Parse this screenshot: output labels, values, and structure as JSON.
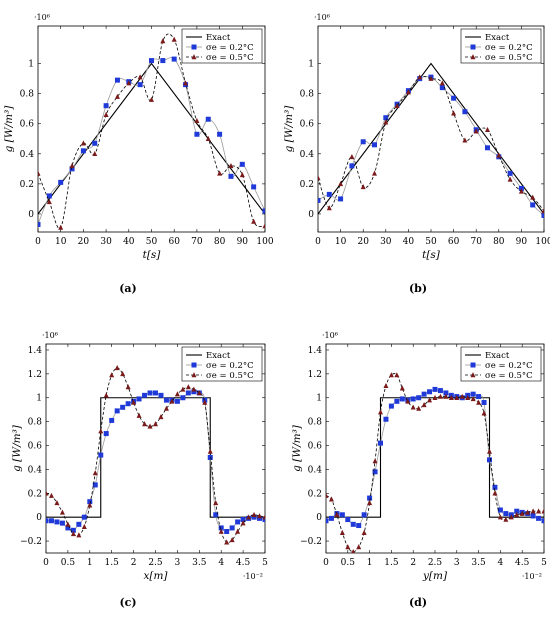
{
  "captions": [
    "(a)",
    "(b)",
    "(c)",
    "(d)"
  ],
  "legend": {
    "exact": "Exact",
    "s02": "σe = 0.2°C",
    "s05": "σe = 0.5°C"
  },
  "colors": {
    "exact": "#000000",
    "s02_marker": "#1f3ad8",
    "s02_line": "#9a9a9a",
    "s05": "#7a1a1a"
  },
  "chart_data": [
    {
      "type": "line",
      "panel": "(a)",
      "xlabel": "t[s]",
      "ylabel": "g [W/m³]",
      "y_multiplier": "·10⁶",
      "x_multiplier": "",
      "xlim": [
        0,
        100
      ],
      "ylim": [
        -0.12,
        1.25
      ],
      "xticks": [
        0,
        10,
        20,
        30,
        40,
        50,
        60,
        70,
        80,
        90,
        100
      ],
      "xtick_labels": [
        "0",
        "10",
        "20",
        "30",
        "40",
        "50",
        "60",
        "70",
        "80",
        "90",
        "100"
      ],
      "yticks": [
        0,
        0.2,
        0.4,
        0.6,
        0.8,
        1
      ],
      "ytick_labels": [
        "0",
        "0.2",
        "0.4",
        "0.6",
        "0.8",
        "1"
      ],
      "legend_position": "top-right",
      "series": [
        {
          "name": "Exact",
          "style": "solid",
          "x": [
            0,
            50,
            100
          ],
          "y": [
            0,
            1,
            0
          ]
        },
        {
          "name": "σe = 0.2°C",
          "style": "square",
          "x": [
            0,
            5,
            10,
            15,
            20,
            25,
            30,
            35,
            40,
            45,
            50,
            55,
            60,
            65,
            70,
            75,
            80,
            85,
            90,
            95,
            100
          ],
          "y": [
            -0.07,
            0.12,
            0.21,
            0.3,
            0.42,
            0.47,
            0.72,
            0.89,
            0.88,
            0.86,
            1.02,
            1.02,
            1.03,
            0.86,
            0.53,
            0.63,
            0.53,
            0.25,
            0.33,
            0.18,
            0.02
          ]
        },
        {
          "name": "σe = 0.5°C",
          "style": "triangle",
          "x": [
            0,
            5,
            10,
            15,
            20,
            25,
            30,
            35,
            40,
            45,
            50,
            55,
            60,
            65,
            70,
            75,
            80,
            85,
            90,
            95,
            100
          ],
          "y": [
            0.27,
            0.08,
            -0.09,
            0.32,
            0.47,
            0.4,
            0.66,
            0.78,
            0.87,
            0.91,
            0.76,
            1.15,
            1.16,
            0.87,
            0.62,
            0.5,
            0.27,
            0.32,
            0.26,
            -0.05,
            -0.08
          ]
        }
      ]
    },
    {
      "type": "line",
      "panel": "(b)",
      "xlabel": "t[s]",
      "ylabel": "g [W/m³]",
      "y_multiplier": "·10⁶",
      "x_multiplier": "",
      "xlim": [
        0,
        100
      ],
      "ylim": [
        -0.12,
        1.25
      ],
      "xticks": [
        0,
        10,
        20,
        30,
        40,
        50,
        60,
        70,
        80,
        90,
        100
      ],
      "xtick_labels": [
        "0",
        "10",
        "20",
        "30",
        "40",
        "50",
        "60",
        "70",
        "80",
        "90",
        "100"
      ],
      "yticks": [
        0,
        0.2,
        0.4,
        0.6,
        0.8,
        1
      ],
      "ytick_labels": [
        "0",
        "0.2",
        "0.4",
        "0.6",
        "0.8",
        "1"
      ],
      "legend_position": "top-right",
      "series": [
        {
          "name": "Exact",
          "style": "solid",
          "x": [
            0,
            50,
            100
          ],
          "y": [
            0,
            1,
            0
          ]
        },
        {
          "name": "σe = 0.2°C",
          "style": "square",
          "x": [
            0,
            5,
            10,
            15,
            20,
            25,
            30,
            35,
            40,
            45,
            50,
            55,
            60,
            65,
            70,
            75,
            80,
            85,
            90,
            95,
            100
          ],
          "y": [
            0.09,
            0.13,
            0.1,
            0.32,
            0.48,
            0.46,
            0.64,
            0.73,
            0.82,
            0.9,
            0.91,
            0.84,
            0.77,
            0.68,
            0.56,
            0.44,
            0.38,
            0.27,
            0.17,
            0.06,
            -0.01
          ]
        },
        {
          "name": "σe = 0.5°C",
          "style": "triangle",
          "x": [
            0,
            5,
            10,
            15,
            20,
            25,
            30,
            35,
            40,
            45,
            50,
            55,
            60,
            65,
            70,
            75,
            80,
            85,
            90,
            95,
            100
          ],
          "y": [
            0.24,
            0.04,
            0.2,
            0.38,
            0.18,
            0.27,
            0.61,
            0.72,
            0.81,
            0.91,
            0.9,
            0.87,
            0.67,
            0.49,
            0.55,
            0.56,
            0.39,
            0.23,
            0.15,
            0.11,
            0.02
          ]
        }
      ]
    },
    {
      "type": "line",
      "panel": "(c)",
      "xlabel": "x[m]",
      "ylabel": "g [W/m³]",
      "y_multiplier": "·10⁶",
      "x_multiplier": "·10⁻²",
      "xlim": [
        0,
        5
      ],
      "ylim": [
        -0.3,
        1.45
      ],
      "xticks": [
        0,
        0.5,
        1,
        1.5,
        2,
        2.5,
        3,
        3.5,
        4,
        4.5,
        5
      ],
      "xtick_labels": [
        "0",
        "0.5",
        "1",
        "1.5",
        "2",
        "2.5",
        "3",
        "3.5",
        "4",
        "4.5",
        "5"
      ],
      "yticks": [
        -0.2,
        0,
        0.2,
        0.4,
        0.6,
        0.8,
        1,
        1.2,
        1.4
      ],
      "ytick_labels": [
        "−0.2",
        "0",
        "0.2",
        "0.4",
        "0.6",
        "0.8",
        "1",
        "1.2",
        "1.4"
      ],
      "legend_position": "top-right",
      "series": [
        {
          "name": "Exact",
          "style": "solid",
          "x": [
            0,
            1.25,
            1.25,
            3.75,
            3.75,
            5
          ],
          "y": [
            0,
            0,
            1,
            1,
            0,
            0
          ]
        },
        {
          "name": "σe = 0.2°C",
          "style": "square",
          "x": [
            0,
            0.125,
            0.25,
            0.375,
            0.5,
            0.625,
            0.75,
            0.875,
            1,
            1.125,
            1.25,
            1.375,
            1.5,
            1.625,
            1.75,
            1.875,
            2,
            2.125,
            2.25,
            2.375,
            2.5,
            2.625,
            2.75,
            2.875,
            3,
            3.125,
            3.25,
            3.375,
            3.5,
            3.625,
            3.75,
            3.875,
            4,
            4.125,
            4.25,
            4.375,
            4.5,
            4.625,
            4.75,
            4.875,
            5
          ],
          "y": [
            -0.03,
            -0.03,
            -0.04,
            -0.05,
            -0.09,
            -0.11,
            -0.06,
            0.0,
            0.13,
            0.27,
            0.52,
            0.7,
            0.81,
            0.89,
            0.92,
            0.95,
            0.97,
            0.99,
            1.02,
            1.04,
            1.04,
            1.02,
            0.98,
            0.98,
            0.97,
            1.0,
            1.04,
            1.05,
            1.04,
            0.98,
            0.5,
            0.02,
            -0.09,
            -0.12,
            -0.09,
            -0.04,
            -0.02,
            -0.01,
            0.0,
            -0.01,
            -0.02
          ]
        },
        {
          "name": "σe = 0.5°C",
          "style": "triangle",
          "x": [
            0,
            0.125,
            0.25,
            0.375,
            0.5,
            0.625,
            0.75,
            0.875,
            1,
            1.125,
            1.25,
            1.375,
            1.5,
            1.625,
            1.75,
            1.875,
            2,
            2.125,
            2.25,
            2.375,
            2.5,
            2.625,
            2.75,
            2.875,
            3,
            3.125,
            3.25,
            3.375,
            3.5,
            3.625,
            3.75,
            3.875,
            4,
            4.125,
            4.25,
            4.375,
            4.5,
            4.625,
            4.75,
            4.875,
            5
          ],
          "y": [
            0.2,
            0.18,
            0.12,
            0.04,
            -0.06,
            -0.14,
            -0.15,
            -0.08,
            0.1,
            0.37,
            0.72,
            1.02,
            1.19,
            1.25,
            1.2,
            1.09,
            0.96,
            0.85,
            0.78,
            0.76,
            0.78,
            0.84,
            0.91,
            0.97,
            1.03,
            1.07,
            1.09,
            1.07,
            1.04,
            0.96,
            0.55,
            0.12,
            -0.12,
            -0.21,
            -0.19,
            -0.12,
            -0.05,
            0.0,
            0.02,
            0.01,
            0.0
          ]
        }
      ]
    },
    {
      "type": "line",
      "panel": "(d)",
      "xlabel": "y[m]",
      "ylabel": "g [W/m³]",
      "y_multiplier": "·10⁶",
      "x_multiplier": "·10⁻²",
      "xlim": [
        0,
        5
      ],
      "ylim": [
        -0.3,
        1.45
      ],
      "xticks": [
        0,
        0.5,
        1,
        1.5,
        2,
        2.5,
        3,
        3.5,
        4,
        4.5,
        5
      ],
      "xtick_labels": [
        "0",
        "0.5",
        "1",
        "1.5",
        "2",
        "2.5",
        "3",
        "3.5",
        "4",
        "4.5",
        "5"
      ],
      "yticks": [
        -0.2,
        0,
        0.2,
        0.4,
        0.6,
        0.8,
        1,
        1.2,
        1.4
      ],
      "ytick_labels": [
        "−0.2",
        "0",
        "0.2",
        "0.4",
        "0.6",
        "0.8",
        "1",
        "1.2",
        "1.4"
      ],
      "legend_position": "top-right",
      "series": [
        {
          "name": "Exact",
          "style": "solid",
          "x": [
            0,
            1.25,
            1.25,
            3.75,
            3.75,
            5
          ],
          "y": [
            0,
            0,
            1,
            1,
            0,
            0
          ]
        },
        {
          "name": "σe = 0.2°C",
          "style": "square",
          "x": [
            0,
            0.125,
            0.25,
            0.375,
            0.5,
            0.625,
            0.75,
            0.875,
            1,
            1.125,
            1.25,
            1.375,
            1.5,
            1.625,
            1.75,
            1.875,
            2,
            2.125,
            2.25,
            2.375,
            2.5,
            2.625,
            2.75,
            2.875,
            3,
            3.125,
            3.25,
            3.375,
            3.5,
            3.625,
            3.75,
            3.875,
            4,
            4.125,
            4.25,
            4.375,
            4.5,
            4.625,
            4.75,
            4.875,
            5
          ],
          "y": [
            -0.03,
            -0.01,
            0.03,
            0.02,
            -0.02,
            -0.06,
            -0.07,
            0.02,
            0.16,
            0.38,
            0.62,
            0.82,
            0.93,
            0.97,
            0.99,
            0.98,
            0.99,
            1.0,
            1.03,
            1.05,
            1.07,
            1.06,
            1.04,
            1.02,
            1.01,
            1.0,
            1.02,
            1.03,
            1.01,
            0.96,
            0.48,
            0.25,
            0.06,
            0.03,
            0.02,
            0.05,
            0.04,
            0.03,
            0.01,
            -0.01,
            -0.03
          ]
        },
        {
          "name": "σe = 0.5°C",
          "style": "triangle",
          "x": [
            0,
            0.125,
            0.25,
            0.375,
            0.5,
            0.625,
            0.75,
            0.875,
            1,
            1.125,
            1.25,
            1.375,
            1.5,
            1.625,
            1.75,
            1.875,
            2,
            2.125,
            2.25,
            2.375,
            2.5,
            2.625,
            2.75,
            2.875,
            3,
            3.125,
            3.25,
            3.375,
            3.5,
            3.625,
            3.75,
            3.875,
            4,
            4.125,
            4.25,
            4.375,
            4.5,
            4.625,
            4.75,
            4.875,
            5
          ],
          "y": [
            0.18,
            0.15,
            0.02,
            -0.13,
            -0.25,
            -0.29,
            -0.25,
            -0.13,
            0.12,
            0.47,
            0.88,
            1.1,
            1.19,
            1.19,
            1.08,
            0.97,
            0.92,
            0.91,
            0.94,
            0.98,
            1.0,
            1.01,
            1.01,
            1.0,
            1.0,
            1.01,
            1.0,
            0.99,
            0.96,
            0.87,
            0.55,
            0.2,
            0.0,
            -0.02,
            0.0,
            0.02,
            0.03,
            0.04,
            0.05,
            0.05,
            0.05
          ]
        }
      ]
    }
  ]
}
